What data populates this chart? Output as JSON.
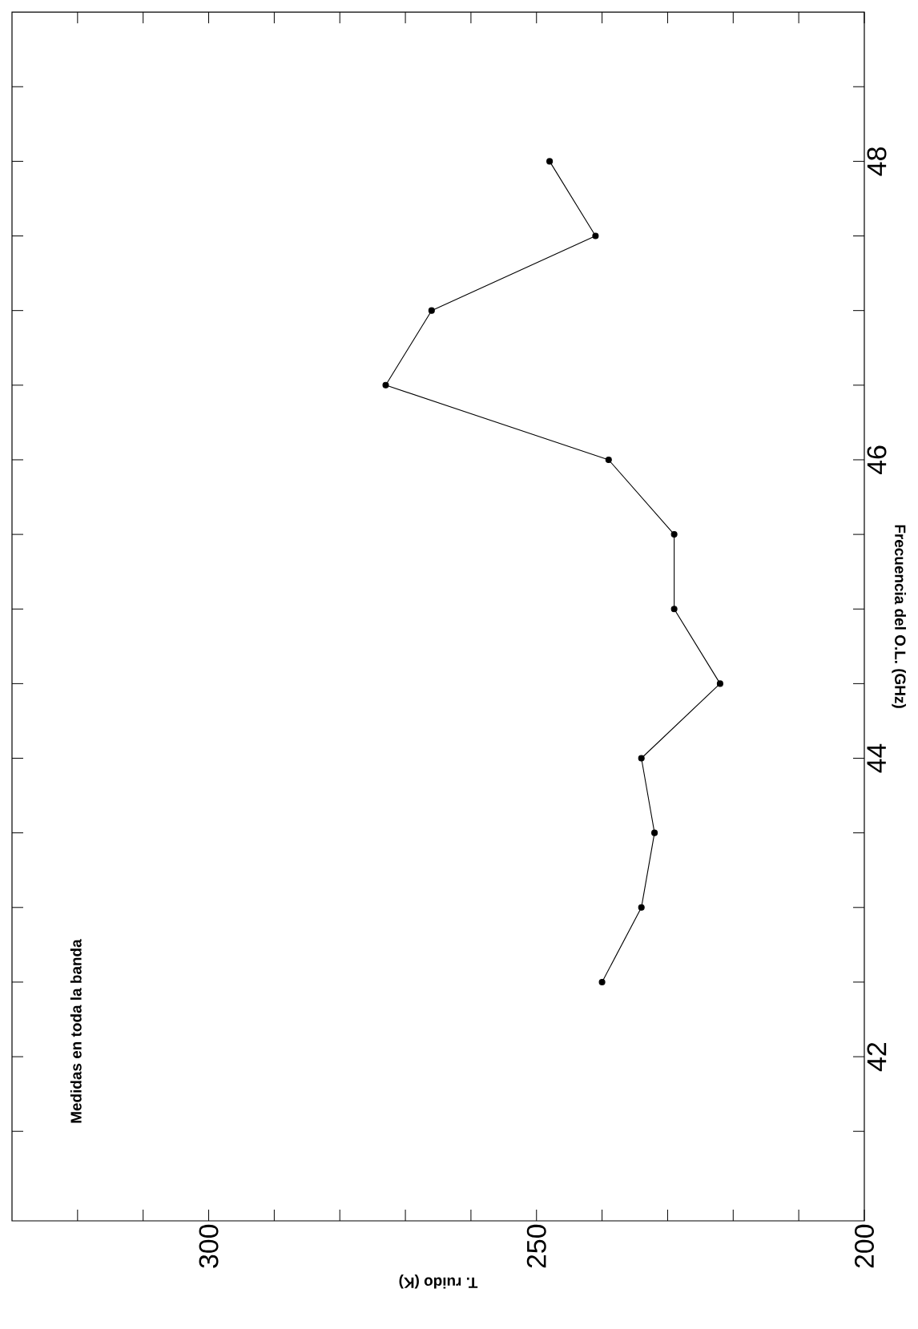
{
  "chart_data": {
    "type": "line",
    "xlabel": "T. ruido (K)",
    "ylabel": "Frecuencia del O.L. (GHz)",
    "annotations": [
      "Medidas en toda la banda"
    ],
    "x": [
      240,
      234,
      232,
      234,
      222,
      229,
      229,
      239,
      273,
      266,
      241,
      248
    ],
    "series": [
      {
        "color": "#000000",
        "values": [
          42.5,
          43,
          43.5,
          44,
          44.5,
          45,
          45.5,
          46,
          46.5,
          47,
          47.5,
          48
        ]
      }
    ],
    "marker": "circle",
    "line_style": "solid",
    "grid": false,
    "xlim": [
      330,
      200
    ],
    "ylim": [
      40.9,
      49
    ],
    "yticks": [
      {
        "value": 41.5,
        "label": null
      },
      42,
      {
        "value": 42.5,
        "label": null
      },
      {
        "value": 43,
        "label": null
      },
      {
        "value": 43.5,
        "label": null
      },
      44,
      {
        "value": 44.5,
        "label": null
      },
      {
        "value": 45,
        "label": null
      },
      {
        "value": 45.5,
        "label": null
      },
      46,
      {
        "value": 46.5,
        "label": null
      },
      {
        "value": 47,
        "label": null
      },
      {
        "value": 47.5,
        "label": null
      },
      48,
      {
        "value": 48.5,
        "label": null
      }
    ],
    "xticks": [
      200,
      {
        "value": 210,
        "label": null
      },
      {
        "value": 220,
        "label": null
      },
      {
        "value": 230,
        "label": null
      },
      {
        "value": 240,
        "label": null
      },
      250,
      {
        "value": 260,
        "label": null
      },
      {
        "value": 270,
        "label": null
      },
      {
        "value": 280,
        "label": null
      },
      {
        "value": 290,
        "label": null
      },
      300,
      {
        "value": 310,
        "label": null
      },
      {
        "value": 320,
        "label": null
      }
    ]
  }
}
